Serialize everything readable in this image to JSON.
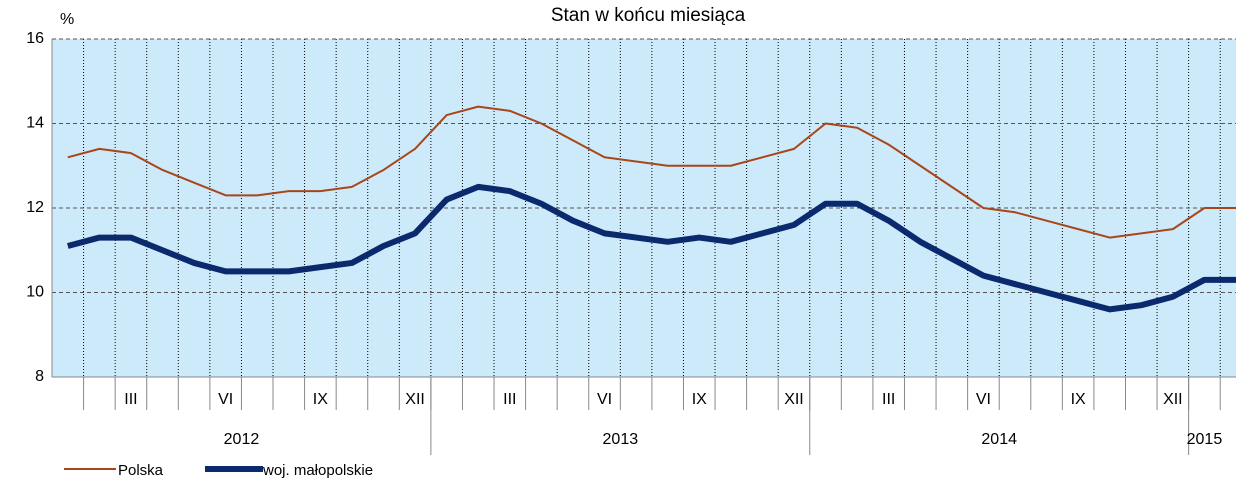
{
  "chart_data": {
    "type": "line",
    "title": "Stan  w  końcu  miesiąca",
    "y_label": "%",
    "categories": [
      null,
      null,
      "III",
      null,
      null,
      "VI",
      null,
      null,
      "IX",
      null,
      null,
      "XII",
      null,
      null,
      "III",
      null,
      null,
      "VI",
      null,
      null,
      "IX",
      null,
      null,
      "XII",
      null,
      null,
      "III",
      null,
      null,
      "VI",
      null,
      null,
      "IX",
      null,
      null,
      "XII",
      null,
      null
    ],
    "years": [
      "2012",
      "2013",
      "2014",
      "2015"
    ],
    "series": [
      {
        "name": "Polska",
        "color": "#a8461a",
        "width": 2,
        "values": [
          13.2,
          13.4,
          13.3,
          12.9,
          12.6,
          12.3,
          12.3,
          12.4,
          12.4,
          12.5,
          12.9,
          13.4,
          14.2,
          14.4,
          14.3,
          14.0,
          13.6,
          13.2,
          13.1,
          13.0,
          13.0,
          13.0,
          13.2,
          13.4,
          14.0,
          13.9,
          13.5,
          13.0,
          12.5,
          12.0,
          11.9,
          11.7,
          11.5,
          11.3,
          11.4,
          11.5,
          12.0,
          12.0
        ]
      },
      {
        "name": "woj. małopolskie",
        "color": "#0b2a6e",
        "width": 6,
        "values": [
          11.1,
          11.3,
          11.3,
          11.0,
          10.7,
          10.5,
          10.5,
          10.5,
          10.6,
          10.7,
          11.1,
          11.4,
          12.2,
          12.5,
          12.4,
          12.1,
          11.7,
          11.4,
          11.3,
          11.2,
          11.3,
          11.2,
          11.4,
          11.6,
          12.1,
          12.1,
          11.7,
          11.2,
          10.8,
          10.4,
          10.2,
          10.0,
          9.8,
          9.6,
          9.7,
          9.9,
          10.3,
          10.3
        ]
      }
    ],
    "ylim": [
      8,
      16
    ],
    "yticks": [
      8,
      10,
      12,
      14,
      16
    ],
    "grid": true,
    "background": "#cdeafa"
  }
}
